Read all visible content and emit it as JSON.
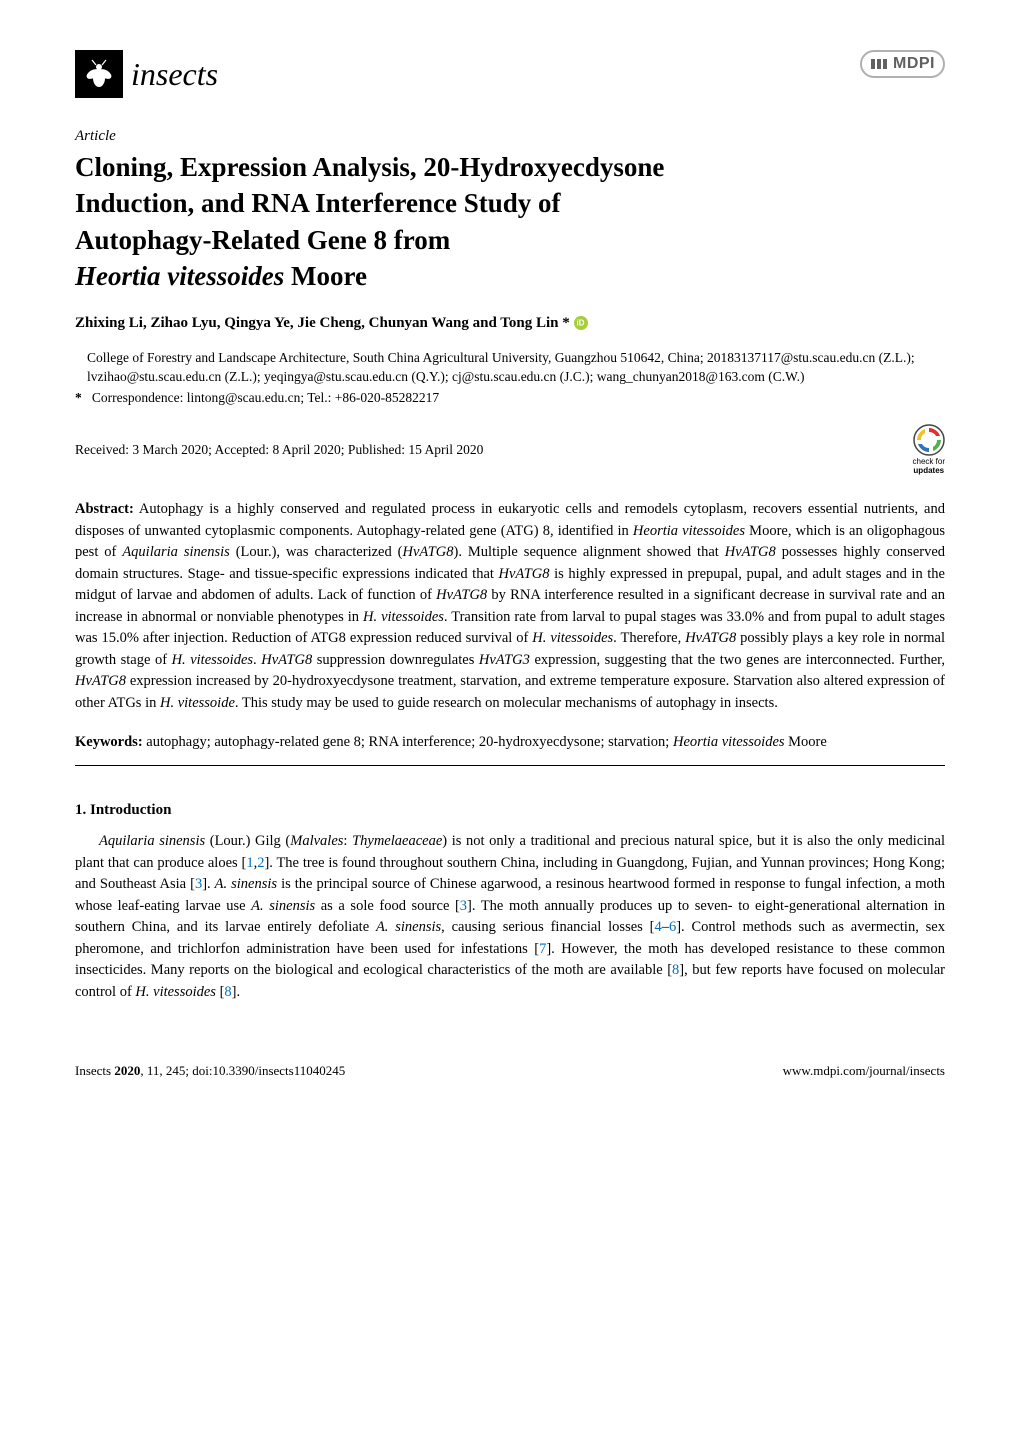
{
  "journal": {
    "name": "insects",
    "publisher": "MDPI"
  },
  "article": {
    "type": "Article",
    "title_parts": {
      "line1": "Cloning, Expression Analysis, 20-Hydroxyecdysone",
      "line2": "Induction, and RNA Interference Study of",
      "line3": "Autophagy-Related Gene 8 from",
      "line4_italic": "Heortia vitessoides",
      "line4_rest": " Moore"
    },
    "authors": "Zhixing Li, Zihao Lyu, Qingya Ye, Jie Cheng, Chunyan Wang and Tong Lin *",
    "affiliation": "College of Forestry and Landscape Architecture, South China Agricultural University, Guangzhou 510642, China; 20183137117@stu.scau.edu.cn (Z.L.); lvzihao@stu.scau.edu.cn (Z.L.); yeqingya@stu.scau.edu.cn (Q.Y.); cj@stu.scau.edu.cn (J.C.); wang_chunyan2018@163.com (C.W.)",
    "correspondence": "Correspondence: lintong@scau.edu.cn; Tel.: +86-020-85282217",
    "received": "Received: 3 March 2020; Accepted: 8 April 2020; Published: 15 April 2020",
    "updates_label": "check for",
    "updates_label2": "updates"
  },
  "abstract": {
    "label": "Abstract:",
    "body_html": "Autophagy is a highly conserved and regulated process in eukaryotic cells and remodels cytoplasm, recovers essential nutrients, and disposes of unwanted cytoplasmic components. Autophagy-related gene (ATG) 8, identified in <span class='italic'>Heortia vitessoides</span> Moore, which is an oligophagous pest of <span class='italic'>Aquilaria sinensis</span> (Lour.), was characterized (<span class='italic'>HvATG8</span>). Multiple sequence alignment showed that <span class='italic'>HvATG8</span> possesses highly conserved domain structures. Stage- and tissue-specific expressions indicated that <span class='italic'>HvATG8</span> is highly expressed in prepupal, pupal, and adult stages and in the midgut of larvae and abdomen of adults. Lack of function of <span class='italic'>HvATG8</span> by RNA interference resulted in a significant decrease in survival rate and an increase in abnormal or nonviable phenotypes in <span class='italic'>H. vitessoides</span>. Transition rate from larval to pupal stages was 33.0% and from pupal to adult stages was 15.0% after injection. Reduction of ATG8 expression reduced survival of <span class='italic'>H. vitessoides</span>. Therefore, <span class='italic'>HvATG8</span> possibly plays a key role in normal growth stage of <span class='italic'>H. vitessoides</span>. <span class='italic'>HvATG8</span> suppression downregulates <span class='italic'>HvATG3</span> expression, suggesting that the two genes are interconnected. Further, <span class='italic'>HvATG8</span> expression increased by 20-hydroxyecdysone treatment, starvation, and extreme temperature exposure. Starvation also altered expression of other ATGs in <span class='italic'>H. vitessoide</span>. This study may be used to guide research on molecular mechanisms of autophagy in insects."
  },
  "keywords": {
    "label": "Keywords:",
    "body_html": "autophagy; autophagy-related gene 8; RNA interference; 20-hydroxyecdysone; starvation; <span class='italic'>Heortia vitessoides</span> Moore"
  },
  "section": {
    "heading": "1. Introduction",
    "body_html": "<span class='italic'>Aquilaria sinensis</span> (Lour.) Gilg (<span class='italic'>Malvales</span>: <span class='italic'>Thymelaeaceae</span>) is not only a traditional and precious natural spice, but it is also the only medicinal plant that can produce aloes [<span class='ref'>1</span>,<span class='ref'>2</span>]. The tree is found throughout southern China, including in Guangdong, Fujian, and Yunnan provinces; Hong Kong; and Southeast Asia [<span class='ref'>3</span>]. <span class='italic'>A. sinensis</span> is the principal source of Chinese agarwood, a resinous heartwood formed in response to fungal infection, a moth whose leaf-eating larvae use <span class='italic'>A. sinensis</span> as a sole food source [<span class='ref'>3</span>]. The moth annually produces up to seven- to eight-generational alternation in southern China, and its larvae entirely defoliate <span class='italic'>A. sinensis</span>, causing serious financial losses [<span class='ref'>4</span>–<span class='ref'>6</span>]. Control methods such as avermectin, sex pheromone, and trichlorfon administration have been used for infestations [<span class='ref'>7</span>]. However, the moth has developed resistance to these common insecticides. Many reports on the biological and ecological characteristics of the moth are available [<span class='ref'>8</span>], but few reports have focused on molecular control of <span class='italic'>H. vitessoides</span> [<span class='ref'>8</span>]."
  },
  "footer": {
    "left_html": "<span class='italic'>Insects</span> <b>2020</b>, <span class='italic'>11</span>, 245; doi:10.3390/insects11040245",
    "right": "www.mdpi.com/journal/insects"
  },
  "colors": {
    "text": "#000000",
    "ref_link": "#0070c0",
    "orcid": "#a6ce39",
    "mdpi_border": "#b0b0b0",
    "mdpi_text": "#606060",
    "background": "#ffffff"
  },
  "typography": {
    "body_font": "Palatino Linotype",
    "title_size_pt": 20,
    "body_size_pt": 11,
    "small_size_pt": 10
  }
}
